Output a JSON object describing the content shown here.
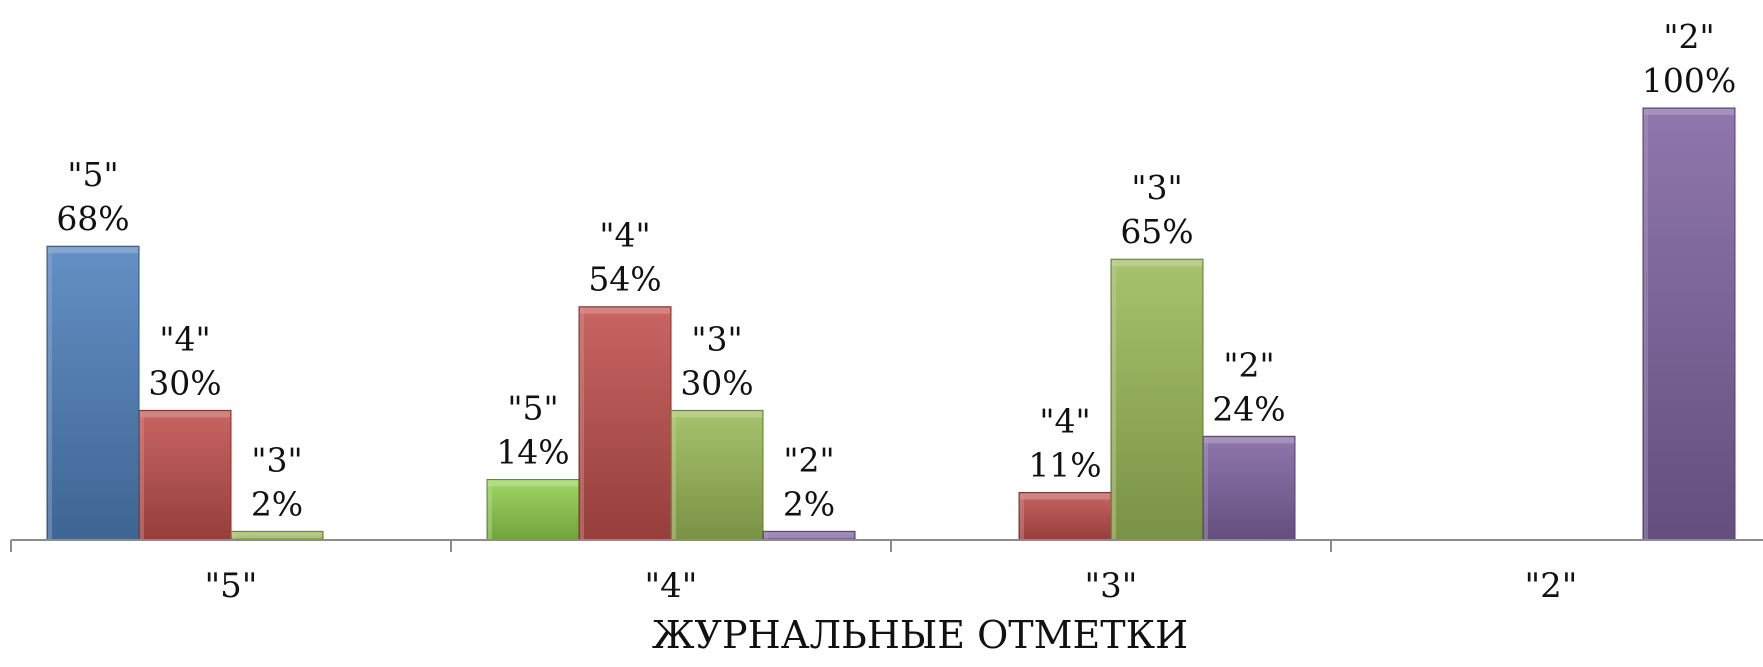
{
  "chart_data": {
    "type": "bar",
    "xlabel": "ЖУРНАЛЬНЫЕ ОТМЕТКИ",
    "ylabel": "",
    "ylim": [
      0,
      100
    ],
    "grid": false,
    "categories": [
      "\"5\"",
      "\"4\"",
      "\"3\"",
      "\"2\""
    ],
    "series": [
      {
        "name": "\"5\"",
        "color": "#4f81bd",
        "values": [
          68,
          14,
          null,
          null
        ]
      },
      {
        "name": "\"4\"",
        "color": "#c0504d",
        "values": [
          30,
          54,
          11,
          null
        ]
      },
      {
        "name": "\"3\"",
        "color": "#9bbb59",
        "values": [
          2,
          30,
          65,
          null
        ]
      },
      {
        "name": "\"2\"",
        "color": "#8064a2",
        "values": [
          null,
          2,
          24,
          100
        ]
      }
    ],
    "bars": [
      {
        "category": 0,
        "slot": 0,
        "grade": "\"5\"",
        "value": 68,
        "value_label": "68%",
        "color": "#4f81bd"
      },
      {
        "category": 0,
        "slot": 1,
        "grade": "\"4\"",
        "value": 30,
        "value_label": "30%",
        "color": "#c0504d"
      },
      {
        "category": 0,
        "slot": 2,
        "grade": "\"3\"",
        "value": 2,
        "value_label": "2%",
        "color": "#9bbb59"
      },
      {
        "category": 1,
        "slot": 0,
        "grade": "\"5\"",
        "value": 14,
        "value_label": "14%",
        "color": "#92d050"
      },
      {
        "category": 1,
        "slot": 1,
        "grade": "\"4\"",
        "value": 54,
        "value_label": "54%",
        "color": "#c0504d"
      },
      {
        "category": 1,
        "slot": 2,
        "grade": "\"3\"",
        "value": 30,
        "value_label": "30%",
        "color": "#9bbb59"
      },
      {
        "category": 1,
        "slot": 3,
        "grade": "\"2\"",
        "value": 2,
        "value_label": "2%",
        "color": "#8064a2"
      },
      {
        "category": 2,
        "slot": 1,
        "grade": "\"4\"",
        "value": 11,
        "value_label": "11%",
        "color": "#c0504d"
      },
      {
        "category": 2,
        "slot": 2,
        "grade": "\"3\"",
        "value": 65,
        "value_label": "65%",
        "color": "#9bbb59"
      },
      {
        "category": 2,
        "slot": 3,
        "grade": "\"2\"",
        "value": 24,
        "value_label": "24%",
        "color": "#8064a2"
      },
      {
        "category": 3,
        "slot": 3,
        "grade": "\"2\"",
        "value": 100,
        "value_label": "100%",
        "color": "#8064a2"
      }
    ]
  }
}
